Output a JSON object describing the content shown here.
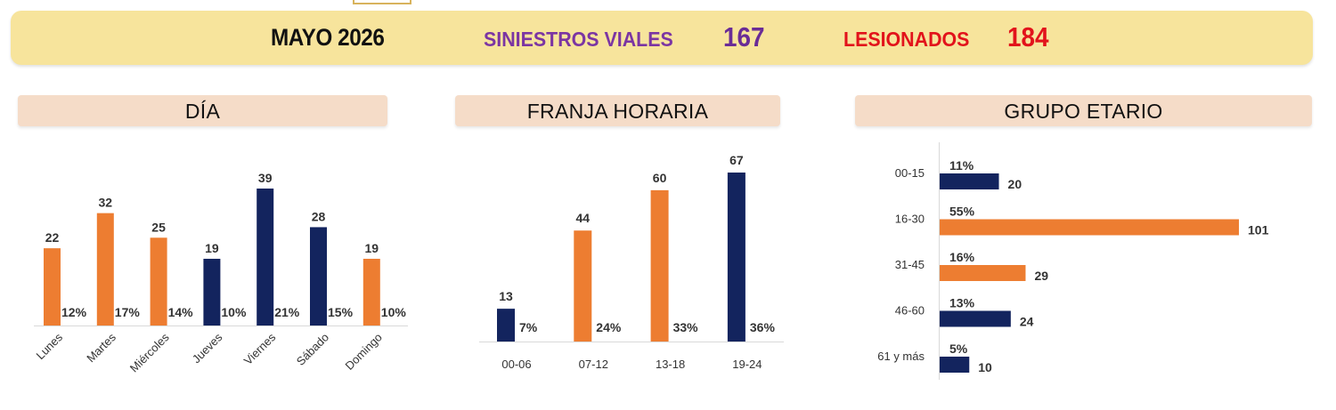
{
  "banner": {
    "month": "MAYO 2026",
    "siniestros_label": "SINIESTROS VIALES",
    "siniestros_value": "167",
    "lesionados_label": "LESIONADOS",
    "lesionados_value": "184"
  },
  "colors": {
    "orange": "#ed7d31",
    "navy": "#13245e",
    "purple": "#7b35a3",
    "red": "#e2131b"
  },
  "chart_data": [
    {
      "type": "bar",
      "title": "DÍA",
      "categories": [
        "Lunes",
        "Martes",
        "Miércoles",
        "Jueves",
        "Viernes",
        "Sábado",
        "Domingo"
      ],
      "values": [
        22,
        32,
        25,
        19,
        39,
        28,
        19
      ],
      "percent_labels": [
        "12%",
        "17%",
        "14%",
        "10%",
        "21%",
        "15%",
        "10%"
      ],
      "bar_colors": [
        "orange",
        "orange",
        "orange",
        "navy",
        "navy",
        "navy",
        "orange"
      ],
      "ylim": [
        0,
        39
      ]
    },
    {
      "type": "bar",
      "title": "FRANJA HORARIA",
      "categories": [
        "00-06",
        "07-12",
        "13-18",
        "19-24"
      ],
      "values": [
        13,
        44,
        60,
        67
      ],
      "percent_labels": [
        "7%",
        "24%",
        "33%",
        "36%"
      ],
      "bar_colors": [
        "navy",
        "orange",
        "orange",
        "navy"
      ],
      "ylim": [
        0,
        67
      ]
    },
    {
      "type": "bar",
      "orientation": "horizontal",
      "title": "GRUPO ETARIO",
      "categories": [
        "00-15",
        "16-30",
        "31-45",
        "46-60",
        "61 y más"
      ],
      "values": [
        20,
        101,
        29,
        24,
        10
      ],
      "percent_labels": [
        "11%",
        "55%",
        "16%",
        "13%",
        "5%"
      ],
      "bar_colors": [
        "navy",
        "orange",
        "orange",
        "navy",
        "navy"
      ],
      "xlim": [
        0,
        101
      ]
    }
  ]
}
